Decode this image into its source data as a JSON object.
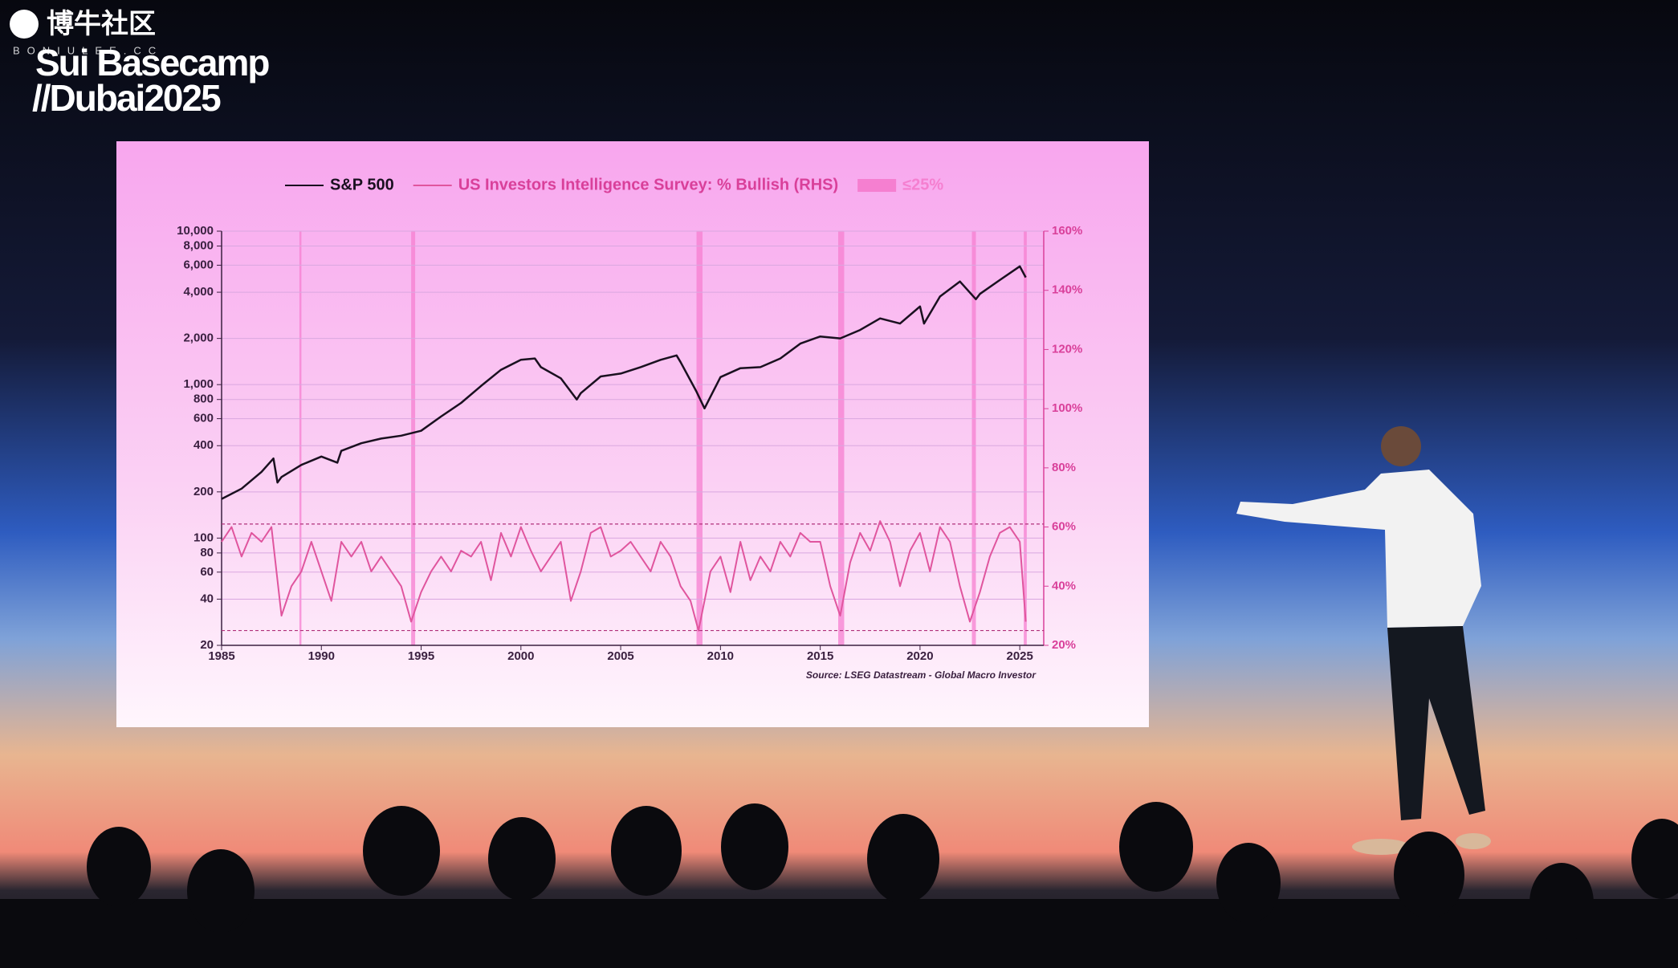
{
  "overlay": {
    "watermark": "博牛社区",
    "watermark_url": "BONIULEE.CC",
    "event_line1": "Sui Basecamp",
    "event_line2": "//Dubai2025"
  },
  "chart_data": {
    "type": "line",
    "source": "Source: LSEG Datastream - Global Macro Investor",
    "xlim": [
      1985,
      2026.2
    ],
    "xticks": [
      1985,
      1990,
      1995,
      2000,
      2005,
      2010,
      2015,
      2020,
      2025
    ],
    "ylim": [
      20,
      10000
    ],
    "log_scale": true,
    "grid": true,
    "yticks": [
      20,
      40,
      60,
      80,
      100,
      200,
      400,
      600,
      800,
      {
        "value": 1000,
        "label": "1,000"
      },
      {
        "value": 2000,
        "label": "2,000"
      },
      {
        "value": 4000,
        "label": "4,000"
      },
      {
        "value": 6000,
        "label": "6,000"
      },
      {
        "value": 8000,
        "label": "8,000"
      },
      {
        "value": 10000,
        "label": "10,000"
      }
    ],
    "y2lim": [
      20,
      160
    ],
    "y2ticks": [
      {
        "value": 20,
        "label": "20%"
      },
      {
        "value": 40,
        "label": "40%"
      },
      {
        "value": 60,
        "label": "60%"
      },
      {
        "value": 80,
        "label": "80%"
      },
      {
        "value": 100,
        "label": "100%"
      },
      {
        "value": 120,
        "label": "120%"
      },
      {
        "value": 140,
        "label": "140%"
      },
      {
        "value": 160,
        "label": "160%"
      }
    ],
    "y2_reference_lines": [
      61,
      25
    ],
    "series": [
      {
        "name": "S&P 500",
        "color": "#1a1020",
        "x": [
          1985,
          1986,
          1987,
          1987.6,
          1987.8,
          1988,
          1989,
          1990,
          1990.8,
          1991,
          1992,
          1993,
          1994,
          1995,
          1996,
          1997,
          1998,
          1999,
          2000,
          2000.7,
          2001,
          2002,
          2002.8,
          2003,
          2004,
          2005,
          2006,
          2007,
          2007.8,
          2008,
          2008.8,
          2009.2,
          2010,
          2011,
          2012,
          2013,
          2014,
          2015,
          2016,
          2017,
          2018,
          2019,
          2020,
          2020.2,
          2021,
          2022,
          2022.8,
          2023,
          2024,
          2025,
          2025.3
        ],
        "values": [
          180,
          210,
          270,
          330,
          230,
          250,
          300,
          340,
          310,
          370,
          415,
          445,
          465,
          500,
          620,
          760,
          980,
          1250,
          1450,
          1480,
          1300,
          1100,
          800,
          880,
          1130,
          1180,
          1300,
          1450,
          1550,
          1400,
          900,
          700,
          1120,
          1280,
          1300,
          1480,
          1850,
          2060,
          2000,
          2270,
          2700,
          2500,
          3230,
          2500,
          3750,
          4700,
          3600,
          3900,
          4800,
          5900,
          5000
        ]
      },
      {
        "name": "US Investors Intelligence Survey: % Bullish (RHS)",
        "color": "#e0559e",
        "axis": "y2",
        "x": [
          1985,
          1985.5,
          1986,
          1986.5,
          1987,
          1987.5,
          1988,
          1988.5,
          1989,
          1989.5,
          1990,
          1990.5,
          1991,
          1991.5,
          1992,
          1992.5,
          1993,
          1993.5,
          1994,
          1994.5,
          1995,
          1995.5,
          1996,
          1996.5,
          1997,
          1997.5,
          1998,
          1998.5,
          1999,
          1999.5,
          2000,
          2000.5,
          2001,
          2001.5,
          2002,
          2002.5,
          2003,
          2003.5,
          2004,
          2004.5,
          2005,
          2005.5,
          2006,
          2006.5,
          2007,
          2007.5,
          2008,
          2008.5,
          2008.9,
          2009.5,
          2010,
          2010.5,
          2011,
          2011.5,
          2012,
          2012.5,
          2013,
          2013.5,
          2014,
          2014.5,
          2015,
          2015.5,
          2016,
          2016.5,
          2017,
          2017.5,
          2018,
          2018.5,
          2019,
          2019.5,
          2020,
          2020.5,
          2021,
          2021.5,
          2022,
          2022.5,
          2023,
          2023.5,
          2024,
          2024.5,
          2025,
          2025.3
        ],
        "values": [
          55,
          60,
          50,
          58,
          55,
          60,
          30,
          40,
          45,
          55,
          45,
          35,
          55,
          50,
          55,
          45,
          50,
          45,
          40,
          28,
          38,
          45,
          50,
          45,
          52,
          50,
          55,
          42,
          58,
          50,
          60,
          52,
          45,
          50,
          55,
          35,
          45,
          58,
          60,
          50,
          52,
          55,
          50,
          45,
          55,
          50,
          40,
          35,
          25,
          45,
          50,
          38,
          55,
          42,
          50,
          45,
          55,
          50,
          58,
          55,
          55,
          40,
          30,
          48,
          58,
          52,
          62,
          55,
          40,
          52,
          58,
          45,
          60,
          55,
          40,
          28,
          38,
          50,
          58,
          60,
          55,
          28
        ]
      }
    ],
    "bands": {
      "name": "≤25%",
      "color": "#f57fd0",
      "x": [
        [
          1988.9,
          1989.0
        ],
        [
          1994.5,
          1994.7
        ],
        [
          2008.8,
          2009.1
        ],
        [
          2015.9,
          2016.2
        ],
        [
          2022.6,
          2022.8
        ],
        [
          2025.2,
          2025.35
        ]
      ]
    }
  }
}
